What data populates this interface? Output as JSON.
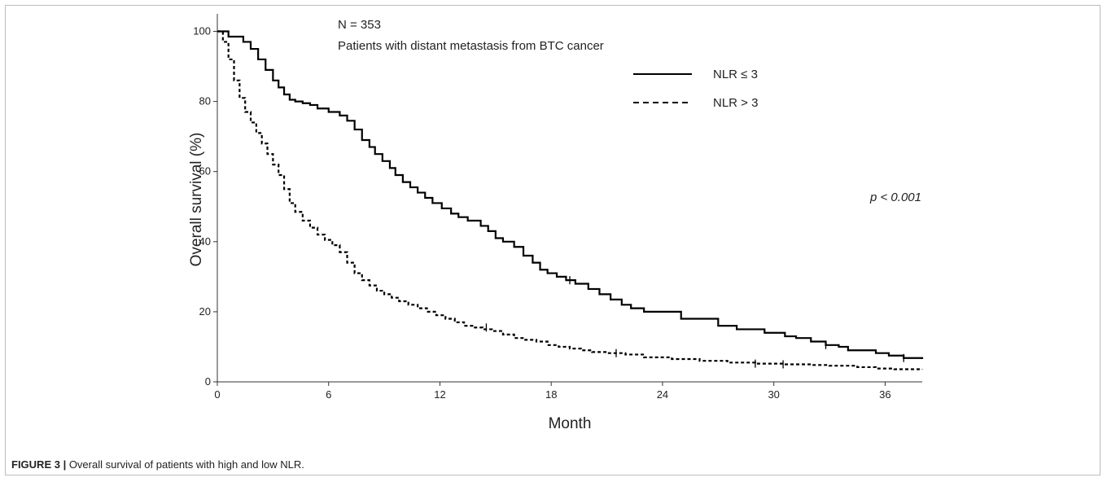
{
  "figure": {
    "label": "FIGURE 3 |",
    "caption": " Overall survival of patients with high and low NLR."
  },
  "chart_data": {
    "type": "line",
    "annotations": {
      "n_label": "N = 353",
      "subtitle": "Patients with distant metastasis from BTC cancer",
      "p_value": "p < 0.001"
    },
    "xlabel": "Month",
    "ylabel": "Overall survival (%)",
    "xlim": [
      0,
      38
    ],
    "ylim": [
      0,
      105
    ],
    "x_ticks": [
      0,
      6,
      12,
      18,
      24,
      30,
      36
    ],
    "y_ticks": [
      0,
      20,
      40,
      60,
      80,
      100
    ],
    "grid": false,
    "legend_position": "top-right",
    "series": [
      {
        "name": "NLR ≤ 3",
        "style": "solid",
        "color": "#000000",
        "x": [
          0,
          0.6,
          0.9,
          1.4,
          1.8,
          2.2,
          2.6,
          3.0,
          3.3,
          3.6,
          3.9,
          4.2,
          4.6,
          5.0,
          5.4,
          6.0,
          6.6,
          7.0,
          7.4,
          7.8,
          8.2,
          8.5,
          8.9,
          9.3,
          9.6,
          10.0,
          10.4,
          10.8,
          11.2,
          11.6,
          12.1,
          12.6,
          13.0,
          13.5,
          14.2,
          14.6,
          15.0,
          15.4,
          16.0,
          16.5,
          17.0,
          17.4,
          17.8,
          18.3,
          18.8,
          19.3,
          20.0,
          20.6,
          21.2,
          21.8,
          22.3,
          23.0,
          25.0,
          27.0,
          28.0,
          29.5,
          30.6,
          31.2,
          32.0,
          32.8,
          33.5,
          34.0,
          35.5,
          36.2,
          37.0,
          38.0
        ],
        "y": [
          100,
          98.5,
          98.5,
          97,
          95,
          92,
          89,
          86,
          84,
          82,
          80.5,
          80,
          79.5,
          79,
          78,
          77,
          76,
          74.5,
          72,
          69,
          67,
          65,
          63,
          61,
          59,
          57,
          55.5,
          54,
          52.5,
          51,
          49.5,
          48,
          47,
          46,
          44.5,
          43,
          41,
          40,
          38.5,
          36,
          34,
          32,
          31,
          30,
          29,
          28,
          26.5,
          25,
          23.5,
          22,
          21,
          20,
          18,
          16,
          15,
          14,
          13,
          12.5,
          11.5,
          10.5,
          10,
          9,
          8.2,
          7.5,
          6.8,
          6.5
        ]
      },
      {
        "name": "NLR > 3",
        "style": "dashed",
        "color": "#000000",
        "x": [
          0,
          0.3,
          0.6,
          0.9,
          1.2,
          1.5,
          1.8,
          2.1,
          2.4,
          2.7,
          3.0,
          3.3,
          3.6,
          3.9,
          4.2,
          4.6,
          5.0,
          5.4,
          5.8,
          6.2,
          6.6,
          7.0,
          7.4,
          7.8,
          8.2,
          8.6,
          9.0,
          9.4,
          9.8,
          10.3,
          10.8,
          11.3,
          11.8,
          12.3,
          12.8,
          13.3,
          13.8,
          14.3,
          14.8,
          15.4,
          16.0,
          16.6,
          17.2,
          17.8,
          18.4,
          19.0,
          19.6,
          20.2,
          21.0,
          22.0,
          23.0,
          24.5,
          26.0,
          27.5,
          29.0,
          30.5,
          32.0,
          33.0,
          34.5,
          35.5,
          36.5,
          38.0
        ],
        "y": [
          100,
          97,
          92,
          86,
          81,
          77,
          74,
          71,
          68,
          65,
          62,
          59,
          55,
          51,
          48.5,
          46,
          44,
          42,
          40.5,
          39,
          37,
          34,
          31,
          29,
          27.5,
          26,
          25,
          24,
          23,
          22,
          21,
          20,
          19,
          18,
          17,
          16,
          15.5,
          15,
          14.5,
          13.5,
          12.5,
          12,
          11.5,
          10.5,
          10,
          9.5,
          9,
          8.5,
          8.2,
          7.8,
          7,
          6.5,
          6,
          5.5,
          5.2,
          5,
          4.8,
          4.6,
          4.2,
          3.8,
          3.6,
          3.5
        ]
      }
    ],
    "censor_marks": [
      {
        "series": 0,
        "x": 19.0,
        "y": 29
      },
      {
        "series": 0,
        "x": 32.8,
        "y": 10.5
      },
      {
        "series": 0,
        "x": 37.0,
        "y": 6.8
      },
      {
        "series": 1,
        "x": 14.5,
        "y": 15.5
      },
      {
        "series": 1,
        "x": 21.5,
        "y": 8.2
      },
      {
        "series": 1,
        "x": 29.0,
        "y": 5.2
      },
      {
        "series": 1,
        "x": 30.5,
        "y": 5.0
      }
    ]
  }
}
